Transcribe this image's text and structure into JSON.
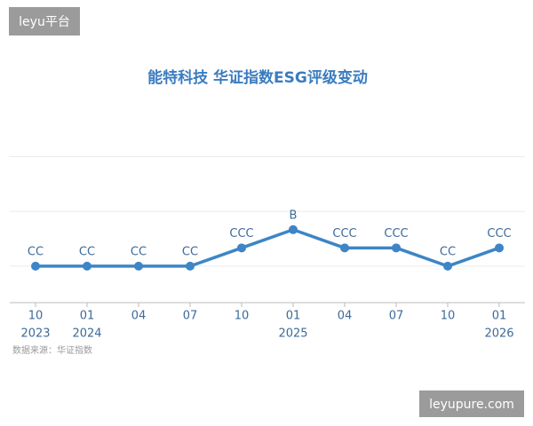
{
  "chart_data": {
    "type": "line",
    "title": "能特科技 华证指数ESG评级变动",
    "categories": [
      "10",
      "01",
      "04",
      "07",
      "10",
      "01",
      "04",
      "07",
      "10",
      "01"
    ],
    "category_years": [
      "2023",
      "2024",
      null,
      null,
      null,
      "2025",
      null,
      null,
      null,
      "2026"
    ],
    "values": [
      2,
      2,
      2,
      2,
      3,
      4,
      3,
      3,
      2,
      3
    ],
    "value_labels": [
      "CC",
      "CC",
      "CC",
      "CC",
      "CCC",
      "B",
      "CCC",
      "CCC",
      "CC",
      "CCC"
    ],
    "color": "#3d85c6",
    "ylim": [
      0,
      9
    ],
    "yticks": [
      2,
      5,
      8
    ],
    "grid": true,
    "source": "数据来源：华证指数"
  },
  "watermarks": {
    "top_left": "leyu平台",
    "bottom_right": "leyupure.com"
  }
}
